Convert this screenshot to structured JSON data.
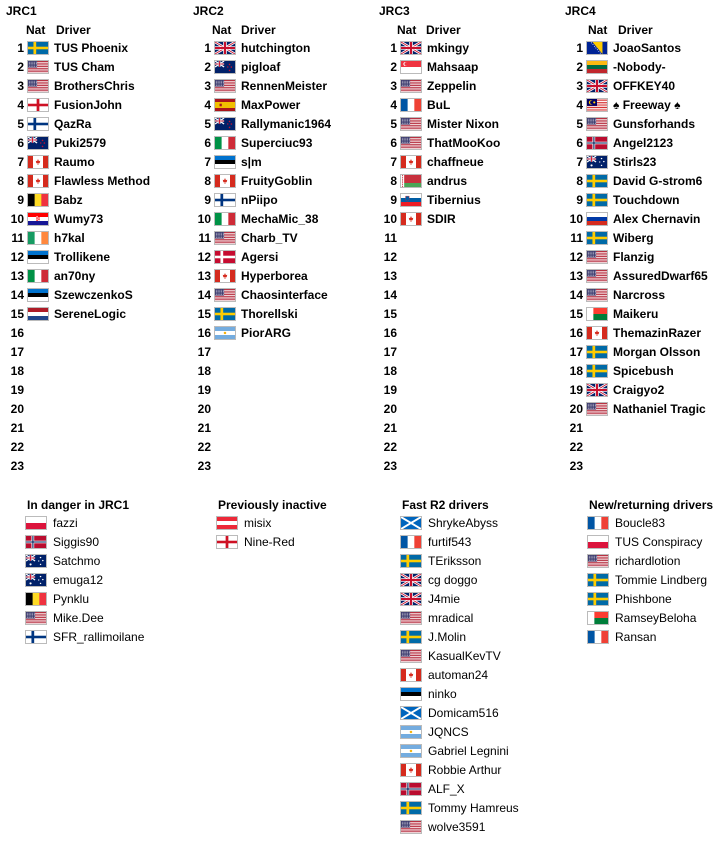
{
  "colors": {
    "text": "#000000",
    "flag_border": "#bbbbbb"
  },
  "header": {
    "nat": "Nat",
    "driver": "Driver"
  },
  "divisions": [
    {
      "title": "JRC1",
      "slots": 23,
      "rows": [
        {
          "flag": "se",
          "name": "TUS Phoenix"
        },
        {
          "flag": "us",
          "name": "TUS Cham"
        },
        {
          "flag": "us",
          "name": "BrothersChris"
        },
        {
          "flag": "en",
          "name": "FusionJohn"
        },
        {
          "flag": "fi",
          "name": "QazRa"
        },
        {
          "flag": "nz",
          "name": "Puki2579"
        },
        {
          "flag": "ca",
          "name": "Raumo"
        },
        {
          "flag": "ca",
          "name": "Flawless Method"
        },
        {
          "flag": "be",
          "name": "Babz"
        },
        {
          "flag": "hr",
          "name": "Wumy73"
        },
        {
          "flag": "ie",
          "name": "h7kal"
        },
        {
          "flag": "ee",
          "name": "Trollikene"
        },
        {
          "flag": "it",
          "name": "an70ny"
        },
        {
          "flag": "ee",
          "name": "SzewczenkoS"
        },
        {
          "flag": "nl",
          "name": "SereneLogic"
        }
      ]
    },
    {
      "title": "JRC2",
      "slots": 23,
      "rows": [
        {
          "flag": "gb",
          "name": "hutchington"
        },
        {
          "flag": "nz",
          "name": "pigloaf"
        },
        {
          "flag": "us",
          "name": "RennenMeister"
        },
        {
          "flag": "es",
          "name": "MaxPower"
        },
        {
          "flag": "nz",
          "name": "Rallymanic1964"
        },
        {
          "flag": "it",
          "name": "Superciuc93"
        },
        {
          "flag": "ee",
          "name": "s|m"
        },
        {
          "flag": "ca",
          "name": "FruityGoblin"
        },
        {
          "flag": "fi",
          "name": "nPiipo"
        },
        {
          "flag": "it",
          "name": "MechaMic_38"
        },
        {
          "flag": "us",
          "name": "Charb_TV"
        },
        {
          "flag": "dk",
          "name": "Agersi"
        },
        {
          "flag": "ca",
          "name": "Hyperborea"
        },
        {
          "flag": "us",
          "name": "Chaosinterface"
        },
        {
          "flag": "se",
          "name": "Thorellski"
        },
        {
          "flag": "ar",
          "name": "PiorARG"
        }
      ]
    },
    {
      "title": "JRC3",
      "slots": 23,
      "rows": [
        {
          "flag": "gb",
          "name": "mkingy"
        },
        {
          "flag": "sg",
          "name": "Mahsaap"
        },
        {
          "flag": "us",
          "name": "Zeppelin"
        },
        {
          "flag": "fr",
          "name": "BuL"
        },
        {
          "flag": "us",
          "name": "Mister Nixon"
        },
        {
          "flag": "us",
          "name": "ThatMooKoo"
        },
        {
          "flag": "ca",
          "name": "chaffneue"
        },
        {
          "flag": "by",
          "name": "andrus"
        },
        {
          "flag": "si",
          "name": "Tibernius"
        },
        {
          "flag": "ca",
          "name": "SDIR"
        }
      ]
    },
    {
      "title": "JRC4",
      "slots": 23,
      "rows": [
        {
          "flag": "ba",
          "name": "JoaoSantos"
        },
        {
          "flag": "lt",
          "name": "-Nobody-"
        },
        {
          "flag": "gb",
          "name": "OFFKEY40"
        },
        {
          "flag": "my",
          "name": "♠ Freeway ♠"
        },
        {
          "flag": "us",
          "name": "Gunsforhands"
        },
        {
          "flag": "no",
          "name": "Angel2123"
        },
        {
          "flag": "au",
          "name": "Stirls23"
        },
        {
          "flag": "se",
          "name": "David G-strom6"
        },
        {
          "flag": "se",
          "name": "Touchdown"
        },
        {
          "flag": "ru",
          "name": "Alex Chernavin"
        },
        {
          "flag": "se",
          "name": "Wiberg"
        },
        {
          "flag": "us",
          "name": "Flanzig"
        },
        {
          "flag": "us",
          "name": "AssuredDwarf65"
        },
        {
          "flag": "us",
          "name": "Narcross"
        },
        {
          "flag": "mg",
          "name": "Maikeru"
        },
        {
          "flag": "ca",
          "name": "ThemazinRazer"
        },
        {
          "flag": "se",
          "name": "Morgan Olsson"
        },
        {
          "flag": "se",
          "name": "Spicebush"
        },
        {
          "flag": "gb",
          "name": "Craigyo2"
        },
        {
          "flag": "us",
          "name": "Nathaniel Tragic"
        }
      ]
    }
  ],
  "groups": [
    {
      "title": "In danger in JRC1",
      "rows": [
        {
          "flag": "pl",
          "name": "fazzi"
        },
        {
          "flag": "no",
          "name": "Siggis90"
        },
        {
          "flag": "au",
          "name": "Satchmo"
        },
        {
          "flag": "au",
          "name": "emuga12"
        },
        {
          "flag": "be",
          "name": "Pynklu"
        },
        {
          "flag": "us",
          "name": "Mike.Dee"
        },
        {
          "flag": "fi",
          "name": "SFR_rallimoilane"
        }
      ]
    },
    {
      "title": "Previously inactive",
      "rows": [
        {
          "flag": "at",
          "name": "misix"
        },
        {
          "flag": "en",
          "name": "Nine-Red"
        }
      ]
    },
    {
      "title": "Fast R2 drivers",
      "rows": [
        {
          "flag": "sc",
          "name": "ShrykeAbyss"
        },
        {
          "flag": "fr",
          "name": "furtif543"
        },
        {
          "flag": "se",
          "name": "TEriksson"
        },
        {
          "flag": "gb",
          "name": "cg doggo"
        },
        {
          "flag": "gb",
          "name": "J4mie"
        },
        {
          "flag": "us",
          "name": "mradical"
        },
        {
          "flag": "se",
          "name": "J.Molin"
        },
        {
          "flag": "us",
          "name": "KasualKevTV"
        },
        {
          "flag": "ca",
          "name": "automan24"
        },
        {
          "flag": "ee",
          "name": "ninko"
        },
        {
          "flag": "sc",
          "name": "Domicam516"
        },
        {
          "flag": "ar",
          "name": "JQNCS"
        },
        {
          "flag": "ar",
          "name": "Gabriel Legnini"
        },
        {
          "flag": "ca",
          "name": "Robbie Arthur"
        },
        {
          "flag": "no",
          "name": "ALF_X"
        },
        {
          "flag": "se",
          "name": "Tommy Hamreus"
        },
        {
          "flag": "us",
          "name": "wolve3591"
        }
      ]
    },
    {
      "title": "New/returning drivers",
      "rows": [
        {
          "flag": "fr",
          "name": "Boucle83"
        },
        {
          "flag": "pl",
          "name": "TUS Conspiracy"
        },
        {
          "flag": "us",
          "name": "richardlotion"
        },
        {
          "flag": "se",
          "name": "Tommie Lindberg"
        },
        {
          "flag": "se",
          "name": "Phishbone"
        },
        {
          "flag": "mg",
          "name": "RamseyBeloha"
        },
        {
          "flag": "fr",
          "name": "Ransan"
        }
      ]
    }
  ]
}
